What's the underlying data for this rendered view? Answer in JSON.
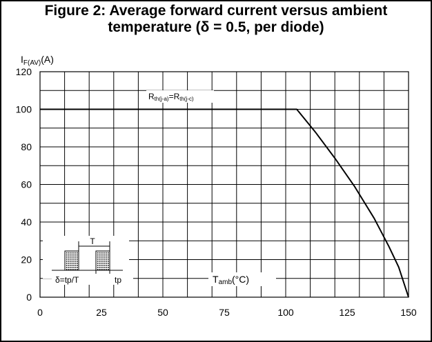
{
  "chart_data": {
    "type": "line",
    "title_line1": "Figure 2: Average forward current versus ambient",
    "title_line2": "temperature (δ = 0.5, per diode)",
    "ylabel_main": "I",
    "ylabel_sub": "F(AV)",
    "ylabel_unit": "(A)",
    "xlabel_main": "T",
    "xlabel_sub": "amb",
    "xlabel_unit": "(°C)",
    "annotation": {
      "r1": "R",
      "r1_sub": "th(j-a)",
      "eq": "=",
      "r2": "R",
      "r2_sub": "th(j-c)"
    },
    "inset": {
      "period_label": "T",
      "duty_label": "δ=tp/T",
      "pulse_label": "tp"
    },
    "xlim": [
      0,
      150
    ],
    "ylim": [
      0,
      120
    ],
    "x_ticks": [
      0,
      25,
      50,
      75,
      100,
      125,
      150
    ],
    "y_ticks": [
      0,
      20,
      40,
      60,
      80,
      100,
      120
    ],
    "x_tick_labels": [
      "0",
      "25",
      "50",
      "75",
      "100",
      "125",
      "150"
    ],
    "y_tick_labels": [
      "0",
      "20",
      "40",
      "60",
      "80",
      "100",
      "120"
    ],
    "x_minor_step": 10,
    "y_minor_step": 10,
    "series": [
      {
        "x": [
          0,
          104.5,
          112,
          120,
          128,
          136,
          142,
          146,
          150
        ],
        "y": [
          100,
          100,
          88,
          74,
          59,
          42,
          27,
          16,
          0
        ]
      }
    ]
  }
}
